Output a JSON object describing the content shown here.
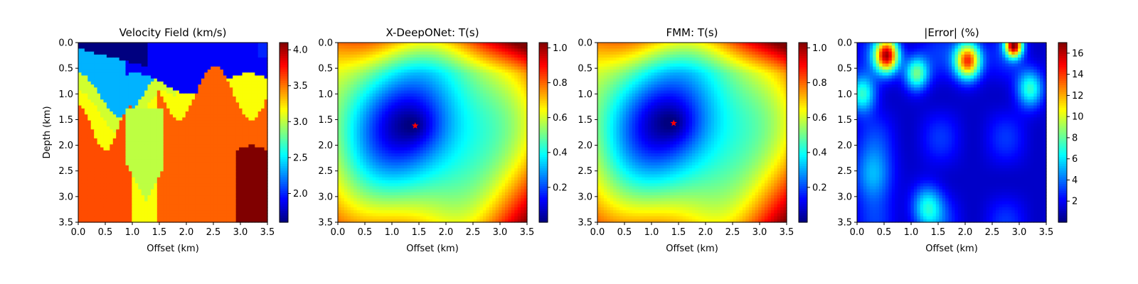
{
  "chart_data": [
    {
      "type": "heatmap",
      "title": "Velocity Field (km/s)",
      "xlabel": "Offset (km)",
      "ylabel": "Depth (km)",
      "xlim": [
        0.0,
        3.5
      ],
      "ylim": [
        0.0,
        3.5
      ],
      "xticks": [
        "0.0",
        "0.5",
        "1.0",
        "1.5",
        "2.0",
        "2.5",
        "3.0",
        "3.5"
      ],
      "yticks": [
        "0.0",
        "0.5",
        "1.0",
        "1.5",
        "2.0",
        "2.5",
        "3.0",
        "3.5"
      ],
      "colormap": "jet",
      "vmin": 1.6,
      "vmax": 4.1,
      "colorbar_ticks": [
        "2.0",
        "2.5",
        "3.0",
        "3.5",
        "4.0"
      ],
      "colorbar_tick_values": [
        2.0,
        2.5,
        3.0,
        3.5,
        4.0
      ]
    },
    {
      "type": "heatmap",
      "title": "X-DeepONet: T(s)",
      "xlabel": "Offset (km)",
      "ylabel": "",
      "xlim": [
        0.0,
        3.5
      ],
      "ylim": [
        0.0,
        3.5
      ],
      "xticks": [
        "0.0",
        "0.5",
        "1.0",
        "1.5",
        "2.0",
        "2.5",
        "3.0",
        "3.5"
      ],
      "yticks": [
        "0.0",
        "0.5",
        "1.0",
        "1.5",
        "2.0",
        "2.5",
        "3.0",
        "3.5"
      ],
      "colormap": "jet",
      "vmin": 0.0,
      "vmax": 1.03,
      "colorbar_ticks": [
        "0.2",
        "0.4",
        "0.6",
        "0.8",
        "1.0"
      ],
      "colorbar_tick_values": [
        0.2,
        0.4,
        0.6,
        0.8,
        1.0
      ],
      "source": {
        "x": 1.43,
        "y": 1.62,
        "marker": "star",
        "color": "#ff0000"
      }
    },
    {
      "type": "heatmap",
      "title": "FMM: T(s)",
      "xlabel": "Offset (km)",
      "ylabel": "",
      "xlim": [
        0.0,
        3.5
      ],
      "ylim": [
        0.0,
        3.5
      ],
      "xticks": [
        "0.0",
        "0.5",
        "1.0",
        "1.5",
        "2.0",
        "2.5",
        "3.0",
        "3.5"
      ],
      "yticks": [
        "0.0",
        "0.5",
        "1.0",
        "1.5",
        "2.0",
        "2.5",
        "3.0",
        "3.5"
      ],
      "colormap": "jet",
      "vmin": 0.0,
      "vmax": 1.03,
      "colorbar_ticks": [
        "0.2",
        "0.4",
        "0.6",
        "0.8",
        "1.0"
      ],
      "colorbar_tick_values": [
        0.2,
        0.4,
        0.6,
        0.8,
        1.0
      ],
      "source": {
        "x": 1.41,
        "y": 1.57,
        "marker": "star",
        "color": "#ff0000"
      }
    },
    {
      "type": "heatmap",
      "title": "|Error| (%)",
      "xlabel": "Offset (km)",
      "ylabel": "",
      "xlim": [
        0.0,
        3.5
      ],
      "ylim": [
        0.0,
        3.5
      ],
      "xticks": [
        "0.0",
        "0.5",
        "1.0",
        "1.5",
        "2.0",
        "2.5",
        "3.0",
        "3.5"
      ],
      "yticks": [
        "0.0",
        "0.5",
        "1.0",
        "1.5",
        "2.0",
        "2.5",
        "3.0",
        "3.5"
      ],
      "colormap": "jet",
      "vmin": 0.0,
      "vmax": 17.0,
      "colorbar_ticks": [
        "2",
        "4",
        "6",
        "8",
        "10",
        "12",
        "14",
        "16"
      ],
      "colorbar_tick_values": [
        2,
        4,
        6,
        8,
        10,
        12,
        14,
        16
      ]
    }
  ]
}
